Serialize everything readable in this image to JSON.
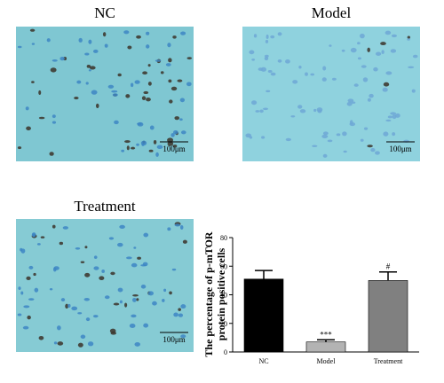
{
  "panels": [
    {
      "title": "NC",
      "scale_bar": "100μm"
    },
    {
      "title": "Model",
      "scale_bar": "100μm"
    },
    {
      "title": "Treatment",
      "scale_bar": "100μm"
    }
  ],
  "chart_data": {
    "type": "bar",
    "y_label": [
      "The percentage of p-mTOR",
      "protein positive cells"
    ],
    "categories": [
      "NC",
      "Model",
      "Treatment"
    ],
    "values": [
      51,
      7,
      50
    ],
    "errors": [
      6,
      1.5,
      6
    ],
    "annotations": [
      null,
      "***",
      "#"
    ],
    "colors": [
      "#000000",
      "#b3b3b3",
      "#808080"
    ],
    "ylim": [
      0,
      80
    ],
    "yticks": [
      0,
      20,
      40,
      60,
      80
    ]
  }
}
